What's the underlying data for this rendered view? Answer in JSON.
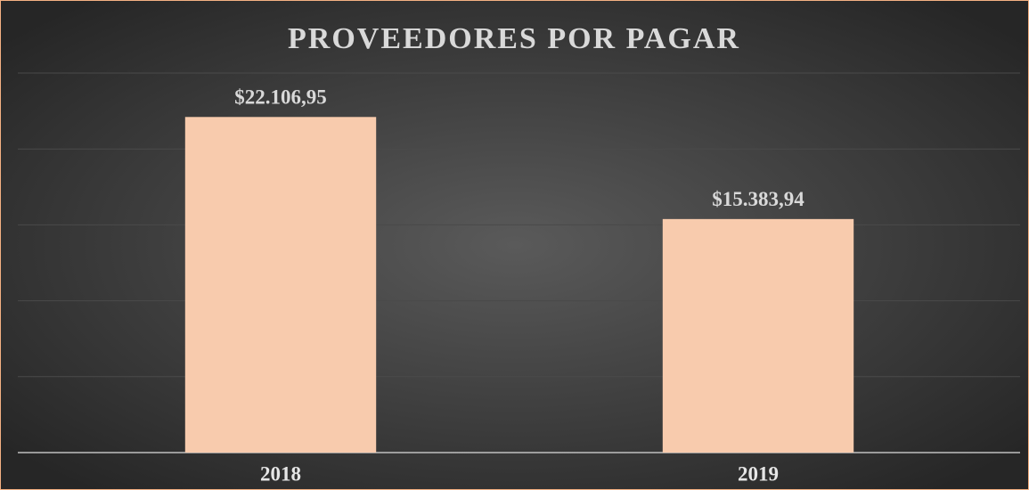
{
  "chart_data": {
    "type": "bar",
    "title": "PROVEEDORES POR PAGAR",
    "categories": [
      "2018",
      "2019"
    ],
    "values": [
      22106.95,
      15383.94
    ],
    "value_labels": [
      "$22.106,95",
      "$15.383,94"
    ],
    "color": "#f8cbad",
    "ylim": [
      0,
      25000
    ],
    "yticks": [
      0,
      5000,
      10000,
      15000,
      20000,
      25000
    ],
    "grid": true
  }
}
